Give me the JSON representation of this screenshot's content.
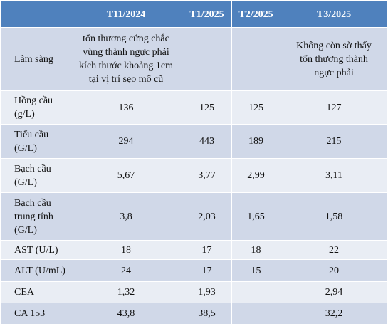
{
  "table": {
    "header": [
      null,
      "T11/2024",
      "T1/2025",
      "T2/2025",
      "T3/2025"
    ],
    "rows": [
      [
        [
          "Lâm sàng"
        ],
        [
          "tổn thương cứng chắc",
          "vùng thành ngực phải",
          "kích thước khoảng 1cm",
          "tại vị trí sẹo mổ cũ"
        ],
        null,
        null,
        [
          "Không còn sờ thấy",
          "tổn thương thành",
          "ngực phải"
        ]
      ],
      [
        [
          "Hồng cầu",
          "(g/L)"
        ],
        "136",
        "125",
        "125",
        "127"
      ],
      [
        [
          "Tiểu cầu",
          "(G/L)"
        ],
        "294",
        "443",
        "189",
        "215"
      ],
      [
        [
          "Bạch cầu",
          "(G/L)"
        ],
        "5,67",
        "3,77",
        "2,99",
        "3,11"
      ],
      [
        [
          "Bạch cầu",
          "trung tính",
          "(G/L)"
        ],
        "3,8",
        "2,03",
        "1,65",
        "1,58"
      ],
      [
        [
          "AST (U/L)"
        ],
        "18",
        "17",
        "18",
        "22"
      ],
      [
        [
          "ALT (U/mL)"
        ],
        "24",
        "17",
        "15",
        "20"
      ],
      [
        [
          "CEA"
        ],
        "1,32",
        "1,93",
        null,
        "2,94"
      ],
      [
        [
          "CA 153"
        ],
        "43,8",
        "38,5",
        null,
        "32,2"
      ]
    ]
  }
}
